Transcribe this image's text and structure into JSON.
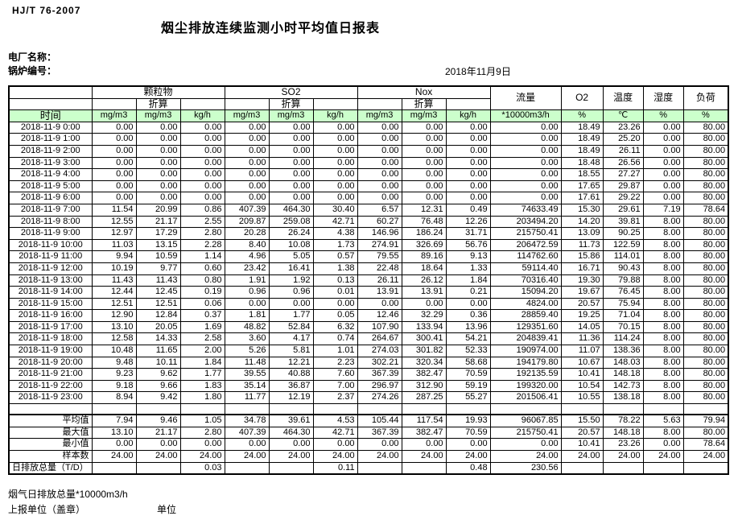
{
  "meta": {
    "standard_code": "HJ/T  76-2007",
    "title": "烟尘排放连续监测小时平均值日报表",
    "plant_label": "电厂名称：",
    "boiler_label": "锅炉编号：",
    "date": "2018年11月9日"
  },
  "table": {
    "time_label": "时间",
    "converted_label": "折算",
    "groups": [
      {
        "label": "颗粒物"
      },
      {
        "label": "SO2"
      },
      {
        "label": "Nox"
      }
    ],
    "single_cols": [
      "流量",
      "O2",
      "温度",
      "湿度",
      "负荷"
    ],
    "units": [
      "mg/m3",
      "mg/m3",
      "kg/h",
      "mg/m3",
      "mg/m3",
      "kg/h",
      "mg/m3",
      "mg/m3",
      "kg/h",
      "*10000m3/h",
      "%",
      "℃",
      "%",
      "%"
    ],
    "rows": [
      {
        "time": "2018-11-9 0:00",
        "values": [
          "0.00",
          "0.00",
          "0.00",
          "0.00",
          "0.00",
          "0.00",
          "0.00",
          "0.00",
          "0.00",
          "0.00",
          "18.49",
          "23.26",
          "0.00",
          "80.00"
        ]
      },
      {
        "time": "2018-11-9 1:00",
        "values": [
          "0.00",
          "0.00",
          "0.00",
          "0.00",
          "0.00",
          "0.00",
          "0.00",
          "0.00",
          "0.00",
          "0.00",
          "18.49",
          "25.20",
          "0.00",
          "80.00"
        ]
      },
      {
        "time": "2018-11-9 2:00",
        "values": [
          "0.00",
          "0.00",
          "0.00",
          "0.00",
          "0.00",
          "0.00",
          "0.00",
          "0.00",
          "0.00",
          "0.00",
          "18.49",
          "26.11",
          "0.00",
          "80.00"
        ]
      },
      {
        "time": "2018-11-9 3:00",
        "values": [
          "0.00",
          "0.00",
          "0.00",
          "0.00",
          "0.00",
          "0.00",
          "0.00",
          "0.00",
          "0.00",
          "0.00",
          "18.48",
          "26.56",
          "0.00",
          "80.00"
        ]
      },
      {
        "time": "2018-11-9 4:00",
        "values": [
          "0.00",
          "0.00",
          "0.00",
          "0.00",
          "0.00",
          "0.00",
          "0.00",
          "0.00",
          "0.00",
          "0.00",
          "18.55",
          "27.27",
          "0.00",
          "80.00"
        ]
      },
      {
        "time": "2018-11-9 5:00",
        "values": [
          "0.00",
          "0.00",
          "0.00",
          "0.00",
          "0.00",
          "0.00",
          "0.00",
          "0.00",
          "0.00",
          "0.00",
          "17.65",
          "29.87",
          "0.00",
          "80.00"
        ]
      },
      {
        "time": "2018-11-9 6:00",
        "values": [
          "0.00",
          "0.00",
          "0.00",
          "0.00",
          "0.00",
          "0.00",
          "0.00",
          "0.00",
          "0.00",
          "0.00",
          "17.61",
          "29.22",
          "0.00",
          "80.00"
        ]
      },
      {
        "time": "2018-11-9 7:00",
        "values": [
          "11.54",
          "20.99",
          "0.86",
          "407.39",
          "464.30",
          "30.40",
          "6.57",
          "12.31",
          "0.49",
          "74633.49",
          "15.30",
          "29.61",
          "7.19",
          "78.64"
        ]
      },
      {
        "time": "2018-11-9 8:00",
        "values": [
          "12.55",
          "21.17",
          "2.55",
          "209.87",
          "259.08",
          "42.71",
          "60.27",
          "76.48",
          "12.26",
          "203494.20",
          "14.20",
          "39.81",
          "8.00",
          "80.00"
        ]
      },
      {
        "time": "2018-11-9 9:00",
        "values": [
          "12.97",
          "17.29",
          "2.80",
          "20.28",
          "26.24",
          "4.38",
          "146.96",
          "186.24",
          "31.71",
          "215750.41",
          "13.09",
          "90.25",
          "8.00",
          "80.00"
        ]
      },
      {
        "time": "2018-11-9 10:00",
        "values": [
          "11.03",
          "13.15",
          "2.28",
          "8.40",
          "10.08",
          "1.73",
          "274.91",
          "326.69",
          "56.76",
          "206472.59",
          "11.73",
          "122.59",
          "8.00",
          "80.00"
        ]
      },
      {
        "time": "2018-11-9 11:00",
        "values": [
          "9.94",
          "10.59",
          "1.14",
          "4.96",
          "5.05",
          "0.57",
          "79.55",
          "89.16",
          "9.13",
          "114762.60",
          "15.86",
          "114.01",
          "8.00",
          "80.00"
        ]
      },
      {
        "time": "2018-11-9 12:00",
        "values": [
          "10.19",
          "9.77",
          "0.60",
          "23.42",
          "16.41",
          "1.38",
          "22.48",
          "18.64",
          "1.33",
          "59114.40",
          "16.71",
          "90.43",
          "8.00",
          "80.00"
        ]
      },
      {
        "time": "2018-11-9 13:00",
        "values": [
          "11.43",
          "11.43",
          "0.80",
          "1.91",
          "1.92",
          "0.13",
          "26.11",
          "26.12",
          "1.84",
          "70316.40",
          "19.30",
          "79.88",
          "8.00",
          "80.00"
        ]
      },
      {
        "time": "2018-11-9 14:00",
        "values": [
          "12.44",
          "12.45",
          "0.19",
          "0.96",
          "0.96",
          "0.01",
          "13.91",
          "13.91",
          "0.21",
          "15094.20",
          "19.67",
          "76.45",
          "8.00",
          "80.00"
        ]
      },
      {
        "time": "2018-11-9 15:00",
        "values": [
          "12.51",
          "12.51",
          "0.06",
          "0.00",
          "0.00",
          "0.00",
          "0.00",
          "0.00",
          "0.00",
          "4824.00",
          "20.57",
          "75.94",
          "8.00",
          "80.00"
        ]
      },
      {
        "time": "2018-11-9 16:00",
        "values": [
          "12.90",
          "12.84",
          "0.37",
          "1.81",
          "1.77",
          "0.05",
          "12.46",
          "32.29",
          "0.36",
          "28859.40",
          "19.25",
          "71.04",
          "8.00",
          "80.00"
        ]
      },
      {
        "time": "2018-11-9 17:00",
        "values": [
          "13.10",
          "20.05",
          "1.69",
          "48.82",
          "52.84",
          "6.32",
          "107.90",
          "133.94",
          "13.96",
          "129351.60",
          "14.05",
          "70.15",
          "8.00",
          "80.00"
        ]
      },
      {
        "time": "2018-11-9 18:00",
        "values": [
          "12.58",
          "14.33",
          "2.58",
          "3.60",
          "4.17",
          "0.74",
          "264.67",
          "300.41",
          "54.21",
          "204839.41",
          "11.36",
          "114.24",
          "8.00",
          "80.00"
        ]
      },
      {
        "time": "2018-11-9 19:00",
        "values": [
          "10.48",
          "11.65",
          "2.00",
          "5.26",
          "5.81",
          "1.01",
          "274.03",
          "301.82",
          "52.33",
          "190974.00",
          "11.07",
          "138.36",
          "8.00",
          "80.00"
        ]
      },
      {
        "time": "2018-11-9 20:00",
        "values": [
          "9.48",
          "10.11",
          "1.84",
          "11.48",
          "12.21",
          "2.23",
          "302.21",
          "320.34",
          "58.68",
          "194179.80",
          "10.67",
          "148.03",
          "8.00",
          "80.00"
        ]
      },
      {
        "time": "2018-11-9 21:00",
        "values": [
          "9.23",
          "9.62",
          "1.77",
          "39.55",
          "40.88",
          "7.60",
          "367.39",
          "382.47",
          "70.59",
          "192135.59",
          "10.41",
          "148.18",
          "8.00",
          "80.00"
        ]
      },
      {
        "time": "2018-11-9 22:00",
        "values": [
          "9.18",
          "9.66",
          "1.83",
          "35.14",
          "36.87",
          "7.00",
          "296.97",
          "312.90",
          "59.19",
          "199320.00",
          "10.54",
          "142.73",
          "8.00",
          "80.00"
        ]
      },
      {
        "time": "2018-11-9 23:00",
        "values": [
          "8.94",
          "9.42",
          "1.80",
          "11.77",
          "12.19",
          "2.37",
          "274.26",
          "287.25",
          "55.27",
          "201506.41",
          "10.55",
          "138.18",
          "8.00",
          "80.00"
        ]
      }
    ],
    "summary": [
      {
        "label": "平均值",
        "values": [
          "7.94",
          "9.46",
          "1.05",
          "34.78",
          "39.61",
          "4.53",
          "105.44",
          "117.54",
          "19.93",
          "96067.85",
          "15.50",
          "78.22",
          "5.63",
          "79.94"
        ]
      },
      {
        "label": "最大值",
        "values": [
          "13.10",
          "21.17",
          "2.80",
          "407.39",
          "464.30",
          "42.71",
          "367.39",
          "382.47",
          "70.59",
          "215750.41",
          "20.57",
          "148.18",
          "8.00",
          "80.00"
        ]
      },
      {
        "label": "最小值",
        "values": [
          "0.00",
          "0.00",
          "0.00",
          "0.00",
          "0.00",
          "0.00",
          "0.00",
          "0.00",
          "0.00",
          "0.00",
          "10.41",
          "23.26",
          "0.00",
          "78.64"
        ]
      },
      {
        "label": "样本数",
        "values": [
          "24.00",
          "24.00",
          "24.00",
          "24.00",
          "24.00",
          "24.00",
          "24.00",
          "24.00",
          "24.00",
          "24.00",
          "24.00",
          "24.00",
          "24.00",
          "24.00"
        ]
      }
    ],
    "total_row": {
      "label": "日排放总量（T/D）",
      "values": [
        "",
        "",
        "0.03",
        "",
        "",
        "0.11",
        "",
        "",
        "0.48",
        "230.56",
        "",
        "",
        "",
        ""
      ]
    }
  },
  "footer": {
    "flue_total": "烟气日排放总量*10000m3/h",
    "report_unit": "上报单位（盖章）",
    "unit_label": "单位"
  }
}
